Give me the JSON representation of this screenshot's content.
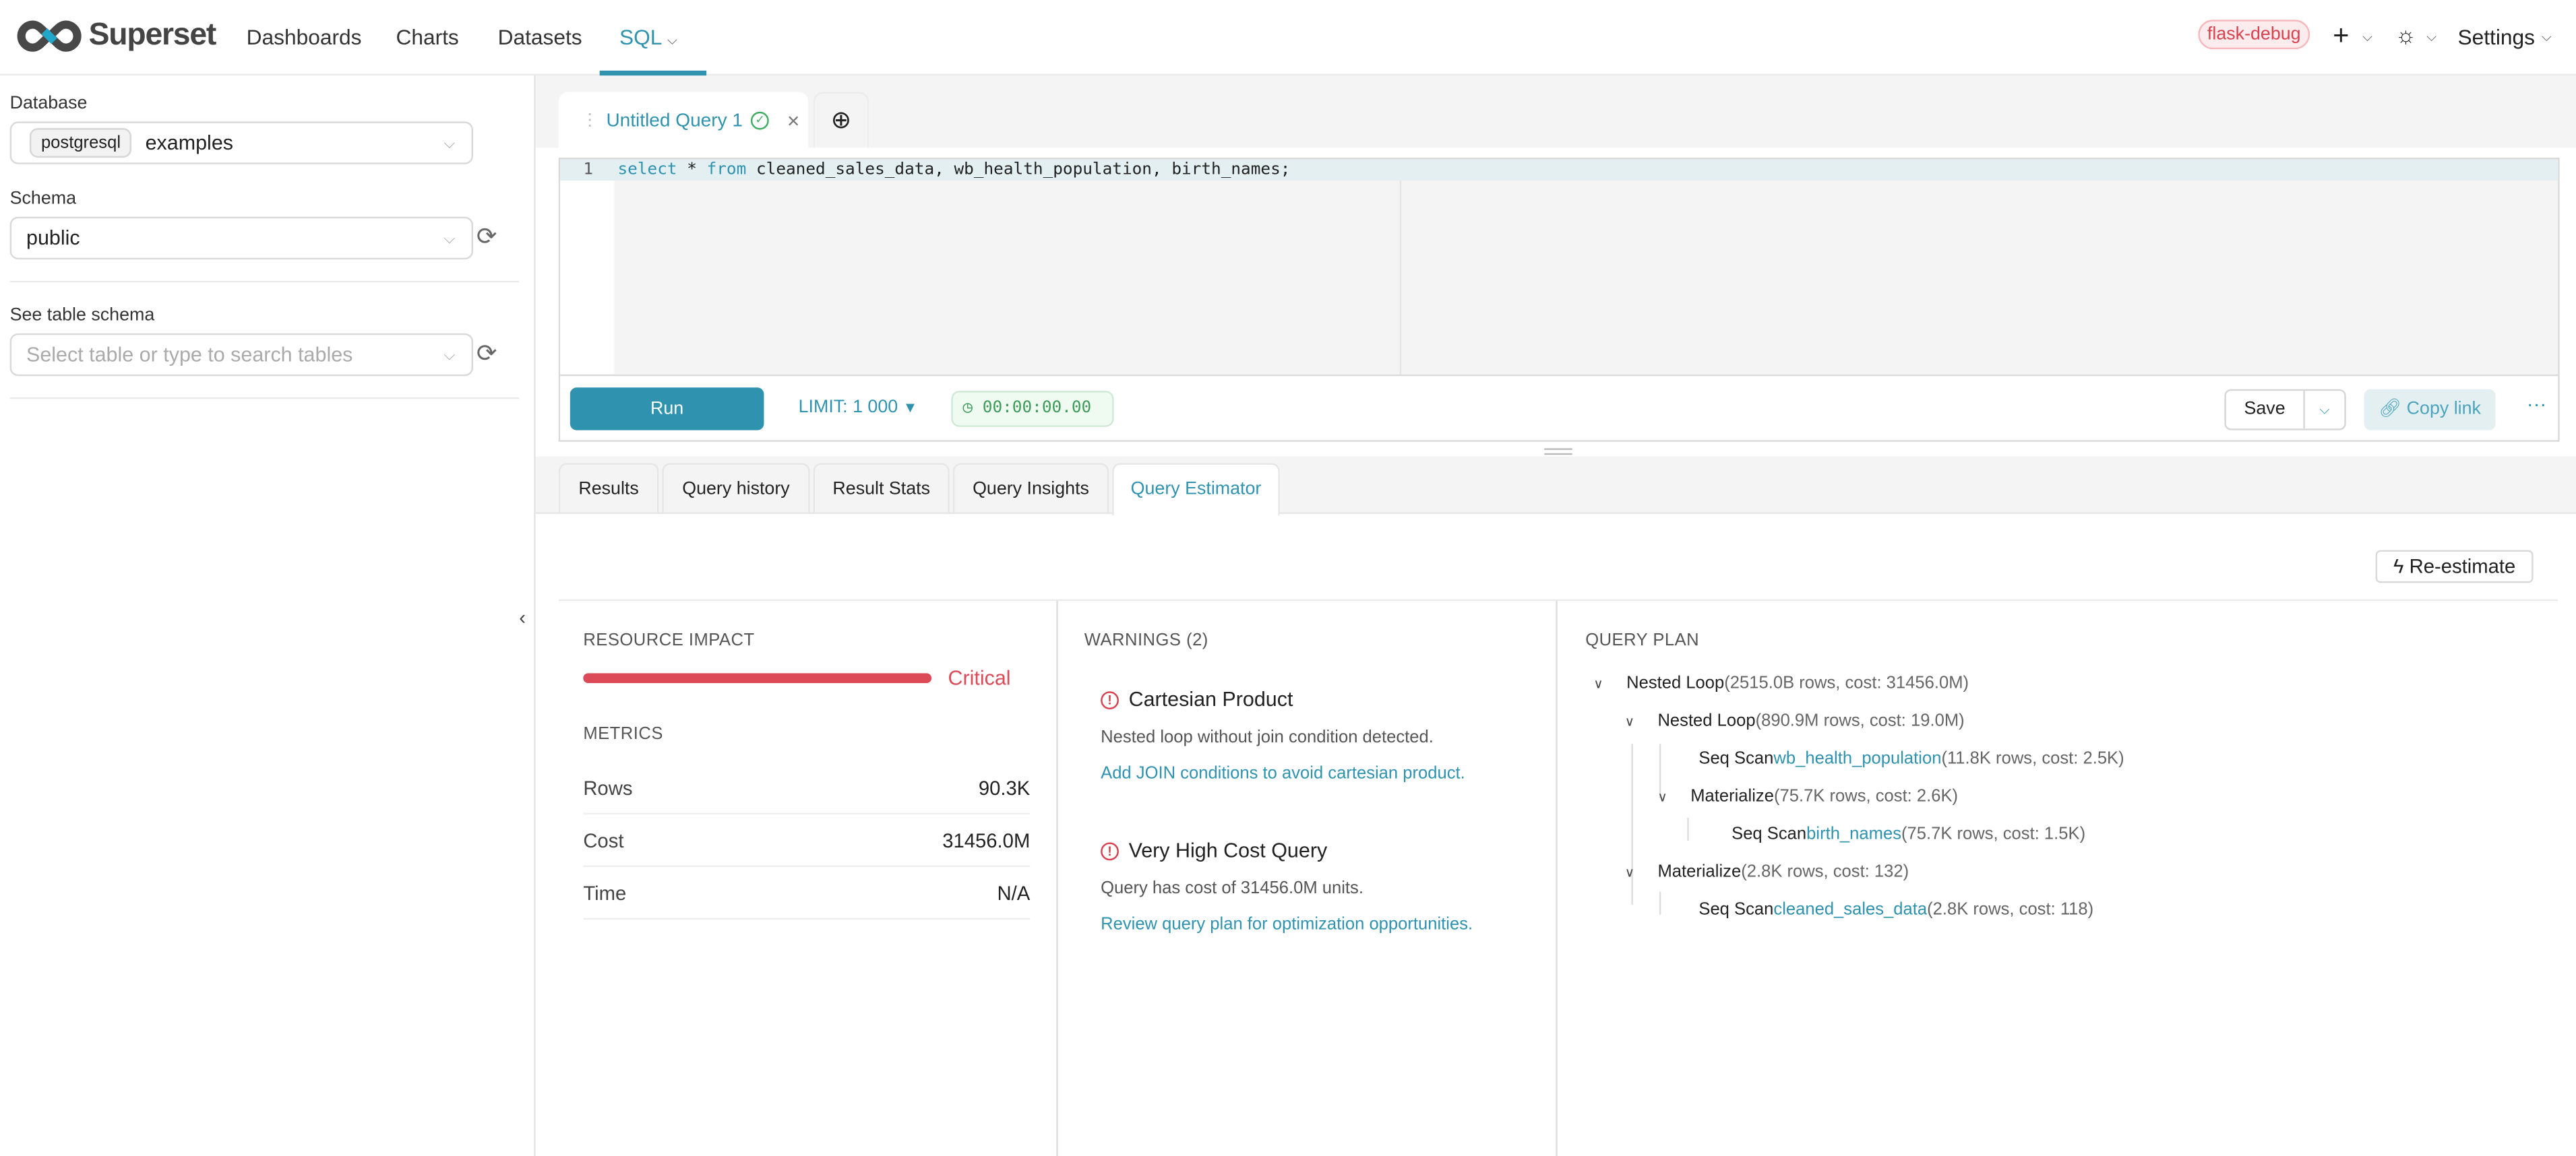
{
  "header": {
    "brand": "Superset",
    "nav": [
      "Dashboards",
      "Charts",
      "Datasets",
      "SQL"
    ],
    "active_nav": "SQL",
    "env_badge": "flask-debug",
    "settings": "Settings",
    "accent": "#2f93b0"
  },
  "sidebar": {
    "database_label": "Database",
    "database_engine": "postgresql",
    "database_value": "examples",
    "schema_label": "Schema",
    "schema_value": "public",
    "table_label": "See table schema",
    "table_placeholder": "Select table or type to search tables"
  },
  "editor": {
    "tab_title": "Untitled Query 1",
    "line_number": "1",
    "sql_kw1": "select",
    "sql_mid": " * ",
    "sql_kw2": "from",
    "sql_rest": " cleaned_sales_data, wb_health_population, birth_names;",
    "run": "Run",
    "limit": "LIMIT: 1 000",
    "timer": "00:00:00.00",
    "save": "Save",
    "copy_link": "Copy link",
    "more": "···"
  },
  "result_tabs": [
    "Results",
    "Query history",
    "Result Stats",
    "Query Insights",
    "Query Estimator"
  ],
  "active_result_tab": "Query Estimator",
  "estimator": {
    "reestimate": "Re-estimate",
    "resource_impact_title": "RESOURCE IMPACT",
    "impact_level": "Critical",
    "impact_fraction": 1.0,
    "impact_color": "#dc4a57",
    "metrics_title": "METRICS",
    "metrics": [
      {
        "label": "Rows",
        "value": "90.3K"
      },
      {
        "label": "Cost",
        "value": "31456.0M"
      },
      {
        "label": "Time",
        "value": "N/A"
      }
    ],
    "warnings_title": "WARNINGS (2)",
    "warnings": [
      {
        "title": "Cartesian Product",
        "desc": "Nested loop without join condition detected.",
        "action": "Add JOIN conditions to avoid cartesian product."
      },
      {
        "title": "Very High Cost Query",
        "desc": "Query has cost of 31456.0M units.",
        "action": "Review query plan for optimization opportunities."
      }
    ],
    "plan_title": "QUERY PLAN",
    "plan": [
      {
        "op": "Nested Loop",
        "table": "",
        "meta": "(2515.0B rows, cost: 31456.0M)"
      },
      {
        "op": "Nested Loop",
        "table": "",
        "meta": "(890.9M rows, cost: 19.0M)"
      },
      {
        "op": "Seq Scan",
        "table": "wb_health_population",
        "meta": "(11.8K rows, cost: 2.5K)"
      },
      {
        "op": "Materialize",
        "table": "",
        "meta": "(75.7K rows, cost: 2.6K)"
      },
      {
        "op": "Seq Scan",
        "table": "birth_names",
        "meta": "(75.7K rows, cost: 1.5K)"
      },
      {
        "op": "Materialize",
        "table": "",
        "meta": "(2.8K rows, cost: 132)"
      },
      {
        "op": "Seq Scan",
        "table": "cleaned_sales_data",
        "meta": "(2.8K rows, cost: 118)"
      }
    ]
  }
}
